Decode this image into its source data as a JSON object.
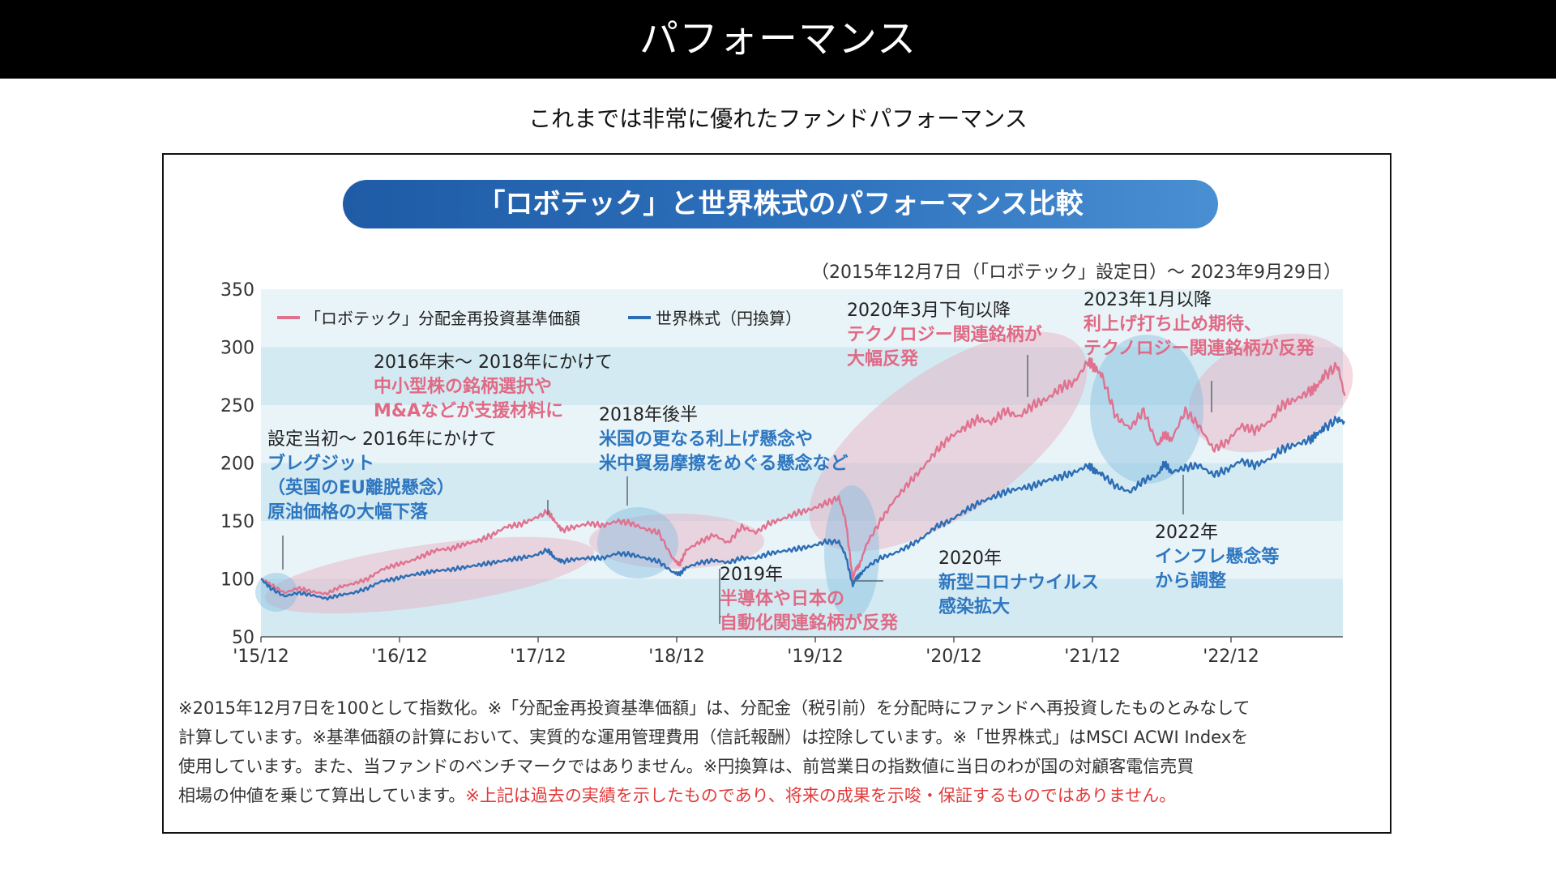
{
  "header": {
    "title": "パフォーマンス"
  },
  "subtitle": "これまでは非常に優れたファンドパフォーマンス",
  "chart_title": "「ロボテック」と世界株式のパフォーマンス比較",
  "period_note": "（2015年12月7日（「ロボテック」設定日）～ 2023年9月29日）",
  "colors": {
    "robotech": "#e0728f",
    "world": "#2c6db5",
    "band_light": "#e9f4f8",
    "band_dark": "#d4eaf2",
    "pink_text": "#e06a85",
    "blue_text": "#2e77c0"
  },
  "chart_data": {
    "type": "line",
    "ylim": [
      50,
      350
    ],
    "yticks": [
      "350",
      "300",
      "250",
      "200",
      "150",
      "100",
      "50"
    ],
    "xtick_labels": [
      "'15/12",
      "'16/12",
      "'17/12",
      "'18/12",
      "'19/12",
      "'20/12",
      "'21/12",
      "'22/12"
    ],
    "legend": [
      "「ロボテック」分配金再投資基準価額",
      "世界株式（円換算）"
    ],
    "series": [
      {
        "name": "「ロボテック」分配金再投資基準価額",
        "x": [
          2015.93,
          2016.0,
          2016.1,
          2016.2,
          2016.3,
          2016.4,
          2016.5,
          2016.6,
          2016.7,
          2016.8,
          2016.9,
          2017.0,
          2017.1,
          2017.2,
          2017.3,
          2017.4,
          2017.5,
          2017.6,
          2017.7,
          2017.8,
          2017.9,
          2018.0,
          2018.05,
          2018.1,
          2018.2,
          2018.3,
          2018.4,
          2018.5,
          2018.6,
          2018.7,
          2018.8,
          2018.9,
          2018.95,
          2019.0,
          2019.1,
          2019.2,
          2019.3,
          2019.4,
          2019.5,
          2019.6,
          2019.7,
          2019.8,
          2019.9,
          2020.0,
          2020.1,
          2020.15,
          2020.2,
          2020.22,
          2020.25,
          2020.3,
          2020.4,
          2020.5,
          2020.6,
          2020.7,
          2020.8,
          2020.9,
          2021.0,
          2021.1,
          2021.2,
          2021.3,
          2021.4,
          2021.5,
          2021.6,
          2021.7,
          2021.8,
          2021.9,
          2021.95,
          2022.0,
          2022.1,
          2022.2,
          2022.3,
          2022.4,
          2022.45,
          2022.5,
          2022.6,
          2022.7,
          2022.8,
          2022.9,
          2023.0,
          2023.1,
          2023.2,
          2023.3,
          2023.4,
          2023.5,
          2023.55,
          2023.6,
          2023.7,
          2023.75
        ],
        "values": [
          100,
          95,
          88,
          92,
          89,
          87,
          93,
          96,
          100,
          108,
          112,
          115,
          120,
          125,
          126,
          130,
          133,
          138,
          145,
          147,
          152,
          158,
          150,
          142,
          145,
          148,
          146,
          150,
          148,
          143,
          140,
          118,
          112,
          125,
          132,
          138,
          131,
          145,
          140,
          148,
          152,
          157,
          160,
          165,
          170,
          150,
          100,
          108,
          112,
          130,
          150,
          168,
          182,
          195,
          210,
          222,
          230,
          238,
          235,
          245,
          240,
          250,
          255,
          265,
          270,
          288,
          282,
          275,
          240,
          230,
          245,
          215,
          225,
          220,
          245,
          232,
          212,
          218,
          232,
          228,
          235,
          250,
          255,
          262,
          266,
          275,
          284,
          258
        ]
      },
      {
        "name": "世界株式（円換算）",
        "x": [
          2015.93,
          2016.0,
          2016.1,
          2016.2,
          2016.3,
          2016.4,
          2016.5,
          2016.6,
          2016.7,
          2016.8,
          2016.9,
          2017.0,
          2017.1,
          2017.2,
          2017.3,
          2017.4,
          2017.5,
          2017.6,
          2017.7,
          2017.8,
          2017.9,
          2018.0,
          2018.05,
          2018.1,
          2018.2,
          2018.3,
          2018.4,
          2018.5,
          2018.6,
          2018.7,
          2018.8,
          2018.9,
          2018.95,
          2019.0,
          2019.1,
          2019.2,
          2019.3,
          2019.4,
          2019.5,
          2019.6,
          2019.7,
          2019.8,
          2019.9,
          2020.0,
          2020.1,
          2020.15,
          2020.2,
          2020.22,
          2020.25,
          2020.3,
          2020.4,
          2020.5,
          2020.6,
          2020.7,
          2020.8,
          2020.9,
          2021.0,
          2021.1,
          2021.2,
          2021.3,
          2021.4,
          2021.5,
          2021.6,
          2021.7,
          2021.8,
          2021.9,
          2021.95,
          2022.0,
          2022.1,
          2022.2,
          2022.3,
          2022.4,
          2022.45,
          2022.5,
          2022.6,
          2022.7,
          2022.8,
          2022.9,
          2023.0,
          2023.1,
          2023.2,
          2023.3,
          2023.4,
          2023.5,
          2023.55,
          2023.6,
          2023.7,
          2023.75
        ],
        "values": [
          100,
          92,
          85,
          88,
          86,
          83,
          86,
          88,
          92,
          98,
          100,
          103,
          105,
          107,
          108,
          110,
          112,
          114,
          116,
          118,
          120,
          125,
          118,
          115,
          117,
          118,
          118,
          122,
          121,
          118,
          115,
          106,
          104,
          110,
          114,
          116,
          114,
          118,
          118,
          122,
          124,
          126,
          128,
          132,
          132,
          120,
          94,
          100,
          103,
          110,
          118,
          122,
          128,
          135,
          145,
          150,
          158,
          165,
          170,
          175,
          178,
          180,
          185,
          188,
          192,
          198,
          193,
          190,
          180,
          175,
          185,
          190,
          200,
          192,
          196,
          198,
          190,
          194,
          202,
          198,
          203,
          212,
          216,
          220,
          225,
          230,
          238,
          235
        ]
      }
    ]
  },
  "annotations": [
    {
      "head": "設定当初～ 2016年にかけて",
      "lines": [
        "ブレグジット",
        "（英国のEU離脱懸念）",
        "原油価格の大幅下落"
      ]
    },
    {
      "head": "2016年末～ 2018年にかけて",
      "lines": [
        "中小型株の銘柄選択や",
        "M&Aなどが支援材料に"
      ]
    },
    {
      "head": "2018年後半",
      "lines": [
        "米国の更なる利上げ懸念や",
        "米中貿易摩擦をめぐる懸念など"
      ]
    },
    {
      "head": "2019年",
      "lines": [
        "半導体や日本の",
        "自動化関連銘柄が反発"
      ]
    },
    {
      "head": "2020年3月下旬以降",
      "lines": [
        "テクノロジー関連銘柄が",
        "大幅反発"
      ]
    },
    {
      "head": "2020年",
      "lines": [
        "新型コロナウイルス",
        "感染拡大"
      ]
    },
    {
      "head": "2023年1月以降",
      "lines": [
        "利上げ打ち止め期待、",
        "テクノロジー関連銘柄が反発"
      ]
    },
    {
      "head": "2022年",
      "lines": [
        "インフレ懸念等",
        "から調整"
      ]
    }
  ],
  "notes": {
    "line1": "※2015年12月7日を100として指数化。※「分配金再投資基準価額」は、分配金（税引前）を分配時にファンドへ再投資したものとみなして",
    "line2": "計算しています。※基準価額の計算において、実質的な運用管理費用（信託報酬）は控除しています。※「世界株式」はMSCI ACWI Indexを",
    "line3": "使用しています。また、当ファンドのベンチマークではありません。※円換算は、前営業日の指数値に当日のわが国の対顧客電信売買",
    "line4_normal": "相場の仲値を乗じて算出しています。",
    "line4_warn": "※上記は過去の実績を示したものであり、将来の成果を示唆・保証するものではありません。"
  }
}
